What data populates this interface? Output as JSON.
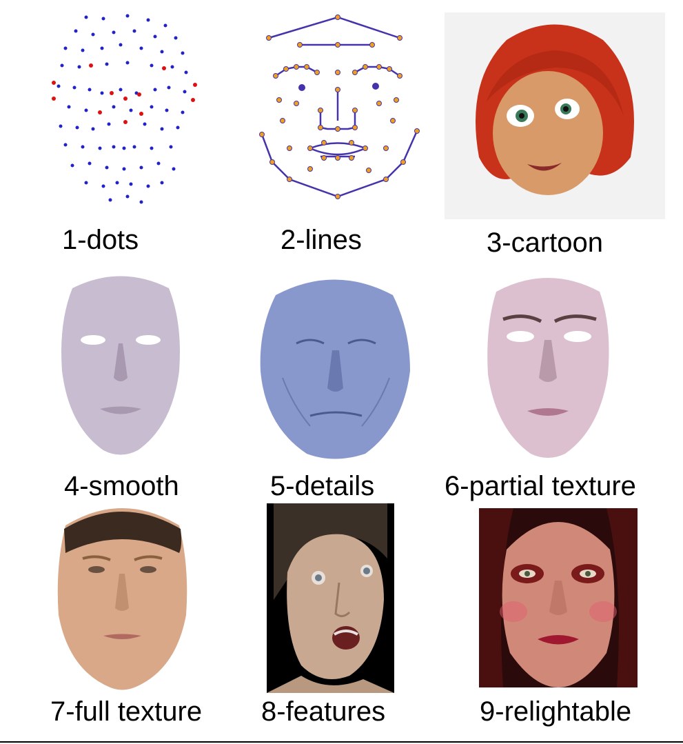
{
  "panels": [
    {
      "caption": "1-dots"
    },
    {
      "caption": "2-lines"
    },
    {
      "caption": "3-cartoon"
    },
    {
      "caption": "4-smooth"
    },
    {
      "caption": "5-details"
    },
    {
      "caption": "6-partial texture"
    },
    {
      "caption": "7-full texture"
    },
    {
      "caption": "8-features"
    },
    {
      "caption": "9-relightable"
    }
  ]
}
